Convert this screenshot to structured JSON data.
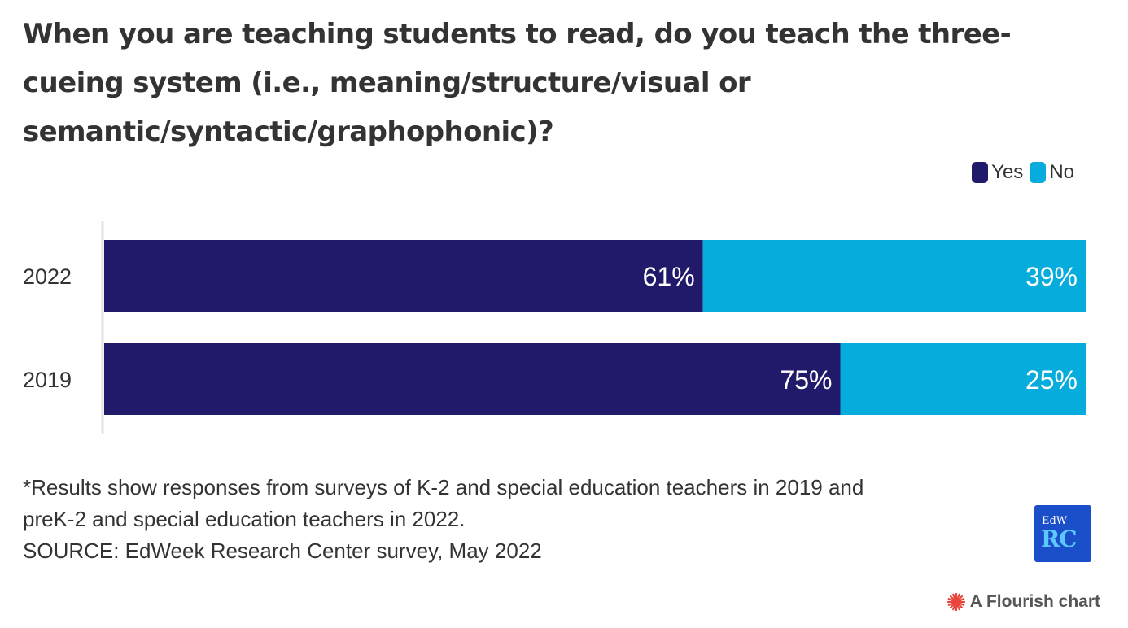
{
  "chart_data": {
    "type": "bar",
    "orientation": "horizontal",
    "stacked": true,
    "title": "When you are teaching students to read, do you teach the three-cueing system (i.e., meaning/structure/visual or semantic/syntactic/graphophonic)?",
    "categories": [
      "2022",
      "2019"
    ],
    "series": [
      {
        "name": "Yes",
        "color": "#211a6b",
        "values": [
          61,
          75
        ]
      },
      {
        "name": "No",
        "color": "#06acdc",
        "values": [
          39,
          25
        ]
      }
    ],
    "value_suffix": "%",
    "xlim": [
      0,
      100
    ],
    "legend_position": "top-right",
    "grid": false
  },
  "footnotes": {
    "note_line1": "*Results show responses from surveys of K-2 and special education teachers in 2019 and",
    "note_line2": "preK-2 and special education teachers in 2022.",
    "source": "SOURCE: EdWeek Research Center survey, May 2022"
  },
  "logo": {
    "top": "EdW",
    "bottom": "RC"
  },
  "credit": {
    "text": "A Flourish chart",
    "icon": "flourish-icon"
  }
}
